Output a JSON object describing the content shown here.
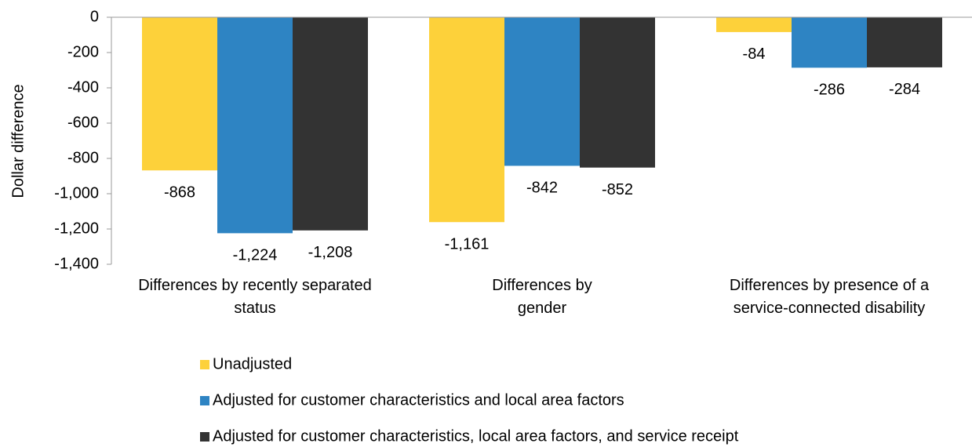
{
  "chart_data": {
    "type": "bar",
    "y_label": "Dollar difference",
    "categories": [
      "Differences by recently separated status",
      "Differences by gender",
      "Differences by presence of a service-connected disability"
    ],
    "series": [
      {
        "name": "Unadjusted",
        "color": "#fdd13a",
        "values": [
          -868,
          -1161,
          -84
        ],
        "value_labels": [
          "-868",
          "-1,161",
          "-84"
        ]
      },
      {
        "name": "Adjusted for customer characteristics and local area factors",
        "color": "#2e84c3",
        "values": [
          -1224,
          -842,
          -286
        ],
        "value_labels": [
          "-1,224",
          "-842",
          "-286"
        ]
      },
      {
        "name": "Adjusted for customer characteristics, local area factors, and service receipt",
        "color": "#333333",
        "values": [
          -1208,
          -852,
          -284
        ],
        "value_labels": [
          "-1,208",
          "-852",
          "-284"
        ]
      }
    ],
    "ylim": [
      -1400,
      0
    ],
    "yticks": [
      0,
      -200,
      -400,
      -600,
      -800,
      {
        "value": -1000,
        "label": "-1,000"
      },
      {
        "value": -1200,
        "label": "-1,200"
      },
      {
        "value": -1400,
        "label": "-1,400"
      }
    ],
    "legend": "bottom"
  }
}
